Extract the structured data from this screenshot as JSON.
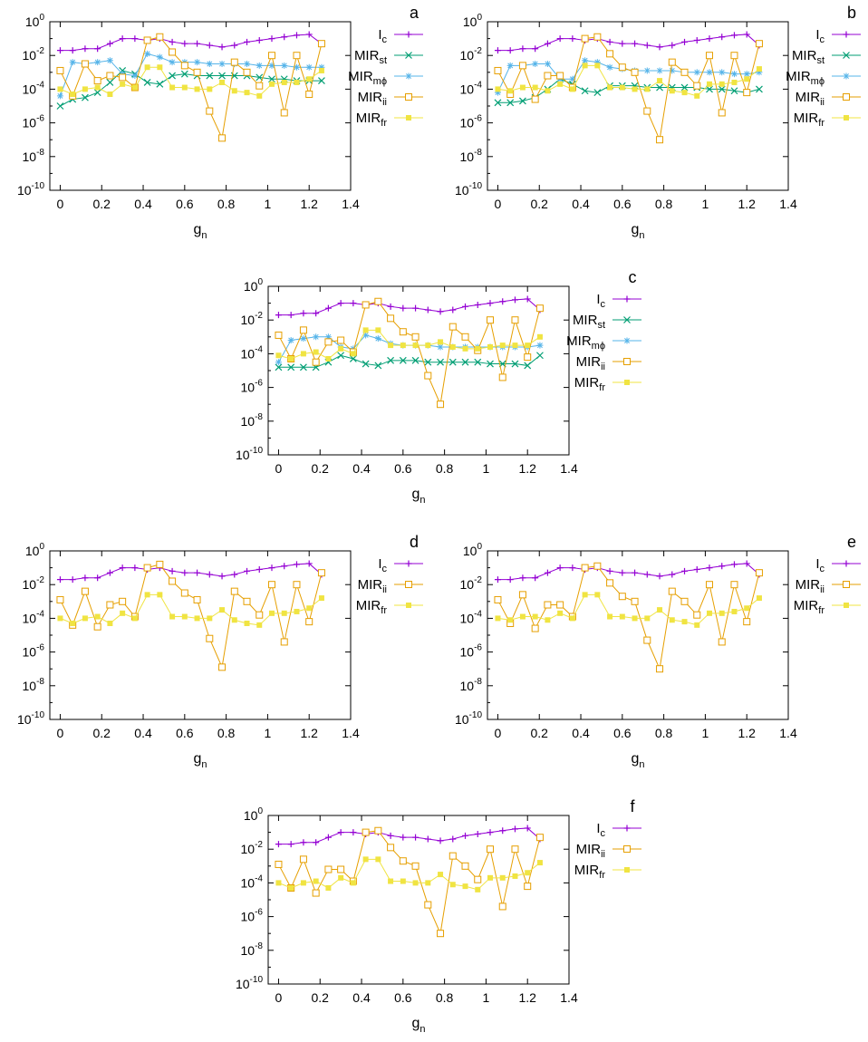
{
  "colors": {
    "Ic": "#9400d3",
    "MIRst": "#009e73",
    "MIRmphi": "#56b4e9",
    "MIRii": "#e69f00",
    "MIRfr": "#f0e442",
    "axis": "#000000"
  },
  "legend_texts": {
    "Ic": {
      "main": "I",
      "sub": "c"
    },
    "MIRst": {
      "main": "MIR",
      "sub": "st"
    },
    "MIRmphi": {
      "main": "MIR",
      "sub": "mϕ"
    },
    "MIRii": {
      "main": "MIR",
      "sub": "ii"
    },
    "MIRfr": {
      "main": "MIR",
      "sub": "fr"
    }
  },
  "chart_data": [
    {
      "type": "line",
      "panel_label": "a",
      "xlabel": {
        "main": "g",
        "sub": "n"
      },
      "xlim": [
        -0.05,
        1.4
      ],
      "xticks": [
        "0",
        "0.2",
        "0.4",
        "0.6",
        "0.8",
        "1",
        "1.2",
        "1.4"
      ],
      "ylim_exp": [
        -10,
        0
      ],
      "ytick_exps": [
        "0",
        "-2",
        "-4",
        "-6",
        "-8",
        "-10"
      ],
      "y_scale": "log10",
      "legend": "right",
      "x": [
        0,
        0.06,
        0.12,
        0.18,
        0.24,
        0.3,
        0.36,
        0.42,
        0.48,
        0.54,
        0.6,
        0.66,
        0.72,
        0.78,
        0.84,
        0.9,
        0.96,
        1.02,
        1.08,
        1.14,
        1.2,
        1.26
      ],
      "series": [
        {
          "key": "Ic",
          "marker": "plus",
          "log10_values": [
            -1.7,
            -1.7,
            -1.6,
            -1.6,
            -1.3,
            -1.0,
            -1.0,
            -1.1,
            -1.0,
            -1.2,
            -1.3,
            -1.3,
            -1.4,
            -1.5,
            -1.4,
            -1.2,
            -1.1,
            -1.0,
            -0.9,
            -0.8,
            -0.75,
            -1.3
          ]
        },
        {
          "key": "MIRst",
          "marker": "cross",
          "log10_values": [
            -5.0,
            -4.6,
            -4.5,
            -4.2,
            -3.6,
            -2.9,
            -3.1,
            -3.6,
            -3.7,
            -3.2,
            -3.1,
            -3.2,
            -3.2,
            -3.2,
            -3.2,
            -3.2,
            -3.3,
            -3.4,
            -3.4,
            -3.5,
            -3.5,
            -3.5
          ]
        },
        {
          "key": "MIRmphi",
          "marker": "star",
          "log10_values": [
            -4.4,
            -2.4,
            -2.5,
            -2.4,
            -2.3,
            -3.1,
            -3.2,
            -1.9,
            -2.1,
            -2.4,
            -2.4,
            -2.4,
            -2.5,
            -2.5,
            -2.5,
            -2.5,
            -2.6,
            -2.6,
            -2.6,
            -2.7,
            -2.7,
            -2.7
          ]
        },
        {
          "key": "MIRii",
          "marker": "box",
          "log10_values": [
            -2.9,
            -4.4,
            -2.5,
            -3.5,
            -3.2,
            -3.3,
            -3.9,
            -1.1,
            -0.9,
            -1.8,
            -2.6,
            -3.0,
            -5.3,
            -6.9,
            -2.4,
            -3.0,
            -3.8,
            -2.0,
            -5.4,
            -2.0,
            -4.3,
            -1.3
          ]
        },
        {
          "key": "MIRfr",
          "marker": "square",
          "log10_values": [
            -4.0,
            -4.3,
            -4.0,
            -3.9,
            -4.3,
            -3.7,
            -3.9,
            -2.7,
            -2.7,
            -3.9,
            -3.9,
            -4.0,
            -4.0,
            -3.6,
            -4.1,
            -4.2,
            -4.4,
            -3.7,
            -3.6,
            -3.6,
            -3.4,
            -2.9
          ]
        }
      ]
    },
    {
      "type": "line",
      "panel_label": "b",
      "xlabel": {
        "main": "g",
        "sub": "n"
      },
      "xlim": [
        -0.05,
        1.4
      ],
      "xticks": [
        "0",
        "0.2",
        "0.4",
        "0.6",
        "0.8",
        "1",
        "1.2",
        "1.4"
      ],
      "ylim_exp": [
        -10,
        0
      ],
      "ytick_exps": [
        "0",
        "-2",
        "-4",
        "-6",
        "-8",
        "-10"
      ],
      "y_scale": "log10",
      "legend": "right",
      "x": [
        0,
        0.06,
        0.12,
        0.18,
        0.24,
        0.3,
        0.36,
        0.42,
        0.48,
        0.54,
        0.6,
        0.66,
        0.72,
        0.78,
        0.84,
        0.9,
        0.96,
        1.02,
        1.08,
        1.14,
        1.2,
        1.26
      ],
      "series": [
        {
          "key": "Ic",
          "marker": "plus",
          "log10_values": [
            -1.7,
            -1.7,
            -1.6,
            -1.6,
            -1.3,
            -1.0,
            -1.0,
            -1.1,
            -1.0,
            -1.2,
            -1.3,
            -1.3,
            -1.4,
            -1.5,
            -1.4,
            -1.2,
            -1.1,
            -1.0,
            -0.9,
            -0.8,
            -0.75,
            -1.4
          ]
        },
        {
          "key": "MIRst",
          "marker": "cross",
          "log10_values": [
            -4.8,
            -4.8,
            -4.7,
            -4.5,
            -4.0,
            -3.4,
            -3.7,
            -4.1,
            -4.2,
            -3.8,
            -3.8,
            -3.8,
            -3.9,
            -3.9,
            -3.9,
            -3.9,
            -3.9,
            -4.0,
            -4.0,
            -4.1,
            -4.2,
            -4.0
          ]
        },
        {
          "key": "MIRmphi",
          "marker": "star",
          "log10_values": [
            -4.2,
            -2.6,
            -2.6,
            -2.5,
            -2.5,
            -3.4,
            -3.4,
            -2.3,
            -2.4,
            -2.7,
            -2.8,
            -2.9,
            -2.9,
            -2.9,
            -2.9,
            -3.0,
            -3.0,
            -3.0,
            -3.0,
            -3.1,
            -3.1,
            -3.0
          ]
        },
        {
          "key": "MIRii",
          "marker": "box",
          "log10_values": [
            -2.9,
            -4.3,
            -2.6,
            -4.6,
            -3.2,
            -3.2,
            -3.9,
            -1.0,
            -0.9,
            -1.9,
            -2.7,
            -3.0,
            -5.3,
            -7.0,
            -2.4,
            -3.0,
            -3.8,
            -2.0,
            -5.4,
            -2.0,
            -4.2,
            -1.3
          ]
        },
        {
          "key": "MIRfr",
          "marker": "square",
          "log10_values": [
            -4.0,
            -4.1,
            -3.9,
            -3.9,
            -4.1,
            -3.7,
            -4.0,
            -2.6,
            -2.6,
            -3.9,
            -3.9,
            -4.0,
            -4.0,
            -3.5,
            -4.1,
            -4.2,
            -4.4,
            -3.7,
            -3.7,
            -3.6,
            -3.4,
            -2.8
          ]
        }
      ]
    },
    {
      "type": "line",
      "panel_label": "c",
      "xlabel": {
        "main": "g",
        "sub": "n"
      },
      "xlim": [
        -0.05,
        1.4
      ],
      "xticks": [
        "0",
        "0.2",
        "0.4",
        "0.6",
        "0.8",
        "1",
        "1.2",
        "1.4"
      ],
      "ylim_exp": [
        -10,
        0
      ],
      "ytick_exps": [
        "0",
        "-2",
        "-4",
        "-6",
        "-8",
        "-10"
      ],
      "y_scale": "log10",
      "legend": "right",
      "x": [
        0,
        0.06,
        0.12,
        0.18,
        0.24,
        0.3,
        0.36,
        0.42,
        0.48,
        0.54,
        0.6,
        0.66,
        0.72,
        0.78,
        0.84,
        0.9,
        0.96,
        1.02,
        1.08,
        1.14,
        1.2,
        1.26
      ],
      "series": [
        {
          "key": "Ic",
          "marker": "plus",
          "log10_values": [
            -1.7,
            -1.7,
            -1.6,
            -1.6,
            -1.3,
            -1.0,
            -1.0,
            -1.1,
            -1.0,
            -1.2,
            -1.3,
            -1.3,
            -1.4,
            -1.5,
            -1.4,
            -1.2,
            -1.1,
            -1.0,
            -0.9,
            -0.8,
            -0.75,
            -1.4
          ]
        },
        {
          "key": "MIRst",
          "marker": "cross",
          "log10_values": [
            -4.8,
            -4.8,
            -4.8,
            -4.8,
            -4.5,
            -4.1,
            -4.3,
            -4.6,
            -4.7,
            -4.4,
            -4.4,
            -4.4,
            -4.5,
            -4.5,
            -4.5,
            -4.5,
            -4.5,
            -4.6,
            -4.6,
            -4.6,
            -4.7,
            -4.1
          ]
        },
        {
          "key": "MIRmphi",
          "marker": "star",
          "log10_values": [
            -4.5,
            -3.2,
            -3.1,
            -3.0,
            -3.0,
            -3.6,
            -3.7,
            -2.9,
            -3.1,
            -3.4,
            -3.5,
            -3.5,
            -3.5,
            -3.6,
            -3.6,
            -3.6,
            -3.6,
            -3.6,
            -3.6,
            -3.6,
            -3.6,
            -3.5
          ]
        },
        {
          "key": "MIRii",
          "marker": "box",
          "log10_values": [
            -2.9,
            -4.3,
            -2.6,
            -4.5,
            -3.3,
            -3.2,
            -3.9,
            -1.1,
            -0.9,
            -1.9,
            -2.7,
            -3.0,
            -5.3,
            -7.0,
            -2.4,
            -3.0,
            -3.8,
            -2.0,
            -5.4,
            -2.0,
            -4.2,
            -1.3
          ]
        },
        {
          "key": "MIRfr",
          "marker": "square",
          "log10_values": [
            -4.1,
            -4.3,
            -4.0,
            -3.9,
            -4.3,
            -3.7,
            -4.0,
            -2.6,
            -2.6,
            -3.5,
            -3.5,
            -3.5,
            -3.5,
            -3.3,
            -3.6,
            -3.7,
            -3.7,
            -3.6,
            -3.5,
            -3.5,
            -3.5,
            -3.0
          ]
        }
      ]
    },
    {
      "type": "line",
      "panel_label": "d",
      "xlabel": {
        "main": "g",
        "sub": "n"
      },
      "xlim": [
        -0.05,
        1.4
      ],
      "xticks": [
        "0",
        "0.2",
        "0.4",
        "0.6",
        "0.8",
        "1",
        "1.2",
        "1.4"
      ],
      "ylim_exp": [
        -10,
        0
      ],
      "ytick_exps": [
        "0",
        "-2",
        "-4",
        "-6",
        "-8",
        "-10"
      ],
      "y_scale": "log10",
      "legend": "right",
      "x": [
        0,
        0.06,
        0.12,
        0.18,
        0.24,
        0.3,
        0.36,
        0.42,
        0.48,
        0.54,
        0.6,
        0.66,
        0.72,
        0.78,
        0.84,
        0.9,
        0.96,
        1.02,
        1.08,
        1.14,
        1.2,
        1.26
      ],
      "series": [
        {
          "key": "Ic",
          "marker": "plus",
          "log10_values": [
            -1.7,
            -1.7,
            -1.6,
            -1.6,
            -1.3,
            -1.0,
            -1.0,
            -1.1,
            -1.0,
            -1.2,
            -1.3,
            -1.3,
            -1.4,
            -1.5,
            -1.4,
            -1.2,
            -1.1,
            -1.0,
            -0.9,
            -0.8,
            -0.75,
            -1.4
          ]
        },
        {
          "key": "MIRii",
          "marker": "box",
          "log10_values": [
            -2.9,
            -4.4,
            -2.4,
            -4.5,
            -3.2,
            -3.0,
            -3.9,
            -1.0,
            -0.8,
            -1.8,
            -2.5,
            -2.9,
            -5.2,
            -6.9,
            -2.4,
            -3.0,
            -3.8,
            -2.0,
            -5.4,
            -2.0,
            -4.2,
            -1.3
          ]
        },
        {
          "key": "MIRfr",
          "marker": "square",
          "log10_values": [
            -4.0,
            -4.3,
            -4.0,
            -3.9,
            -4.3,
            -3.7,
            -4.0,
            -2.6,
            -2.6,
            -3.9,
            -3.9,
            -4.0,
            -4.0,
            -3.5,
            -4.1,
            -4.3,
            -4.4,
            -3.7,
            -3.7,
            -3.6,
            -3.4,
            -2.8
          ]
        }
      ]
    },
    {
      "type": "line",
      "panel_label": "e",
      "xlabel": {
        "main": "g",
        "sub": "n"
      },
      "xlim": [
        -0.05,
        1.4
      ],
      "xticks": [
        "0",
        "0.2",
        "0.4",
        "0.6",
        "0.8",
        "1",
        "1.2",
        "1.4"
      ],
      "ylim_exp": [
        -10,
        0
      ],
      "ytick_exps": [
        "0",
        "-2",
        "-4",
        "-6",
        "-8",
        "-10"
      ],
      "y_scale": "log10",
      "legend": "right",
      "x": [
        0,
        0.06,
        0.12,
        0.18,
        0.24,
        0.3,
        0.36,
        0.42,
        0.48,
        0.54,
        0.6,
        0.66,
        0.72,
        0.78,
        0.84,
        0.9,
        0.96,
        1.02,
        1.08,
        1.14,
        1.2,
        1.26
      ],
      "series": [
        {
          "key": "Ic",
          "marker": "plus",
          "log10_values": [
            -1.7,
            -1.7,
            -1.6,
            -1.6,
            -1.3,
            -1.0,
            -1.0,
            -1.1,
            -1.0,
            -1.2,
            -1.3,
            -1.3,
            -1.4,
            -1.5,
            -1.4,
            -1.2,
            -1.1,
            -1.0,
            -0.9,
            -0.8,
            -0.75,
            -1.4
          ]
        },
        {
          "key": "MIRii",
          "marker": "box",
          "log10_values": [
            -2.9,
            -4.3,
            -2.6,
            -4.6,
            -3.2,
            -3.2,
            -3.9,
            -1.0,
            -0.9,
            -1.9,
            -2.7,
            -3.0,
            -5.3,
            -7.0,
            -2.4,
            -3.0,
            -3.8,
            -2.0,
            -5.4,
            -2.0,
            -4.2,
            -1.3
          ]
        },
        {
          "key": "MIRfr",
          "marker": "square",
          "log10_values": [
            -4.0,
            -4.1,
            -3.9,
            -3.9,
            -4.1,
            -3.7,
            -4.0,
            -2.6,
            -2.6,
            -3.9,
            -3.9,
            -4.0,
            -4.0,
            -3.5,
            -4.1,
            -4.2,
            -4.4,
            -3.7,
            -3.7,
            -3.6,
            -3.4,
            -2.8
          ]
        }
      ]
    },
    {
      "type": "line",
      "panel_label": "f",
      "xlabel": {
        "main": "g",
        "sub": "n"
      },
      "xlim": [
        -0.05,
        1.4
      ],
      "xticks": [
        "0",
        "0.2",
        "0.4",
        "0.6",
        "0.8",
        "1",
        "1.2",
        "1.4"
      ],
      "ylim_exp": [
        -10,
        0
      ],
      "ytick_exps": [
        "0",
        "-2",
        "-4",
        "-6",
        "-8",
        "-10"
      ],
      "y_scale": "log10",
      "legend": "right",
      "x": [
        0,
        0.06,
        0.12,
        0.18,
        0.24,
        0.3,
        0.36,
        0.42,
        0.48,
        0.54,
        0.6,
        0.66,
        0.72,
        0.78,
        0.84,
        0.9,
        0.96,
        1.02,
        1.08,
        1.14,
        1.2,
        1.26
      ],
      "series": [
        {
          "key": "Ic",
          "marker": "plus",
          "log10_values": [
            -1.7,
            -1.7,
            -1.6,
            -1.6,
            -1.3,
            -1.0,
            -1.0,
            -1.1,
            -1.0,
            -1.2,
            -1.3,
            -1.3,
            -1.4,
            -1.5,
            -1.4,
            -1.2,
            -1.1,
            -1.0,
            -0.9,
            -0.8,
            -0.75,
            -1.4
          ]
        },
        {
          "key": "MIRii",
          "marker": "box",
          "log10_values": [
            -2.9,
            -4.3,
            -2.6,
            -4.6,
            -3.2,
            -3.2,
            -3.9,
            -1.0,
            -0.9,
            -1.9,
            -2.7,
            -3.0,
            -5.3,
            -7.0,
            -2.4,
            -3.0,
            -3.8,
            -2.0,
            -5.4,
            -2.0,
            -4.2,
            -1.3
          ]
        },
        {
          "key": "MIRfr",
          "marker": "square",
          "log10_values": [
            -4.0,
            -4.3,
            -4.0,
            -3.9,
            -4.3,
            -3.7,
            -4.0,
            -2.6,
            -2.6,
            -3.9,
            -3.9,
            -4.0,
            -4.0,
            -3.5,
            -4.1,
            -4.2,
            -4.4,
            -3.7,
            -3.7,
            -3.6,
            -3.4,
            -2.8
          ]
        }
      ]
    }
  ]
}
